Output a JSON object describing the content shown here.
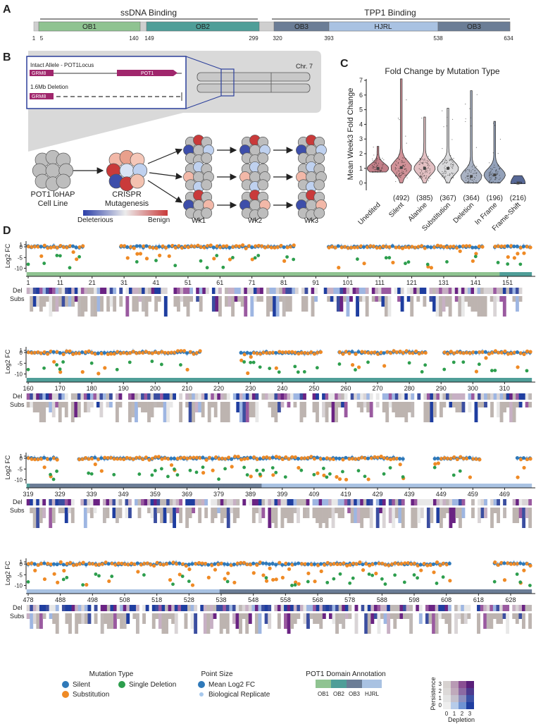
{
  "colors": {
    "ob1": "#8fc391",
    "ob2": "#4f9e98",
    "ob3": "#6b7d96",
    "hjrl": "#a9c2e2",
    "gap": "#cfcfcf",
    "silent": "#2f79b9",
    "deletion": "#2d9e4d",
    "substitution": "#ef8a25",
    "replicate": "#a7c8ec",
    "violin_unedited": "#b86a74",
    "violin_silent": "#c97f86",
    "violin_alanine": "#deb5b8",
    "violin_substitution": "#d3d3d6",
    "violin_deletion": "#9aa4b8",
    "violin_inframe": "#8090ad",
    "violin_frameshift": "#3a4d84"
  },
  "panelA": {
    "label": "A",
    "header_ssdna": "ssDNA Binding",
    "header_tpp1": "TPP1 Binding",
    "domains": [
      {
        "name": "OB1",
        "kind": "ob1"
      },
      {
        "name": "OB2",
        "kind": "ob2"
      },
      {
        "name": "OB3",
        "kind": "ob3"
      },
      {
        "name": "HJRL",
        "kind": "hjrl"
      },
      {
        "name": "OB3",
        "kind": "ob3"
      }
    ],
    "positions": [
      "1",
      "5",
      "140",
      "149",
      "299",
      "320",
      "393",
      "538",
      "634"
    ]
  },
  "panelB": {
    "label": "B",
    "chromosome": "Chr. 7",
    "intact_allele": "Intact Allele - POT1Locus",
    "deletion_allele": "1.6Mb Deletion",
    "gene_grm8": "GRM8",
    "gene_pot1": "POT1",
    "cell_line": "POT1 loHAP",
    "cell_line_2": "Cell Line",
    "crispr": "CRISPR",
    "crispr_2": "Mutagenesis",
    "scale_left": "Deleterious",
    "scale_right": "Benign",
    "weeks": [
      "Wk1",
      "Wk2",
      "Wk3"
    ]
  },
  "panelC": {
    "label": "C",
    "chart_data": {
      "type": "violin",
      "title": "Fold Change by Mutation Type",
      "ylabel": "Mean Week3 Fold Change",
      "ylim": [
        -0.5,
        7
      ],
      "yticks": [
        0,
        1,
        2,
        3,
        4,
        5,
        6,
        7
      ],
      "categories": [
        "Unedited",
        "Silent",
        "Alanine",
        "Substitution",
        "Deletion",
        "In Frame",
        "Frame-Shift"
      ],
      "counts": [
        "",
        "(492)",
        "(385)",
        "(367)",
        "(364)",
        "(196)",
        "(216)"
      ],
      "medians": [
        1.0,
        1.05,
        1.0,
        1.0,
        0.45,
        0.55,
        0.0
      ],
      "max_values": [
        2.5,
        7.1,
        4.5,
        5.1,
        6.3,
        4.2,
        0.5
      ],
      "min_values": [
        0.75,
        0.0,
        0.0,
        0.0,
        0.0,
        0.0,
        -0.05
      ]
    }
  },
  "panelD": {
    "label": "D",
    "ylabel": "Log2 FC",
    "yticks": [
      "1",
      "0",
      "-5",
      "-10"
    ],
    "row_del": "Del",
    "row_subs": "Subs",
    "chart_data": {
      "type": "scatter",
      "ylabel": "Log2 FC",
      "ylim": [
        -10.5,
        2
      ],
      "rows": [
        {
          "start": 1,
          "end": 158,
          "ticks": [
            "1",
            "11",
            "21",
            "31",
            "41",
            "51",
            "61",
            "71",
            "81",
            "91",
            "101",
            "111",
            "121",
            "131",
            "141",
            "151"
          ]
        },
        {
          "start": 160,
          "end": 318,
          "ticks": [
            "160",
            "170",
            "180",
            "190",
            "200",
            "210",
            "220",
            "230",
            "240",
            "250",
            "260",
            "270",
            "280",
            "290",
            "300",
            "310"
          ]
        },
        {
          "start": 319,
          "end": 477,
          "ticks": [
            "319",
            "329",
            "339",
            "349",
            "359",
            "369",
            "379",
            "389",
            "399",
            "409",
            "419",
            "429",
            "439",
            "449",
            "459",
            "469"
          ]
        },
        {
          "start": 478,
          "end": 634,
          "ticks": [
            "478",
            "488",
            "498",
            "508",
            "518",
            "528",
            "538",
            "548",
            "558",
            "568",
            "578",
            "588",
            "598",
            "608",
            "618",
            "628"
          ]
        }
      ]
    },
    "legend": {
      "mutation_type_title": "Mutation Type",
      "silent": "Silent",
      "single_deletion": "Single Deletion",
      "substitution": "Substitution",
      "point_size_title": "Point Size",
      "mean_fc": "Mean Log2 FC",
      "bio_rep": "Biological Replicate",
      "domain_title": "POT1 Domain Annotation",
      "domain_names": [
        "OB1",
        "OB2",
        "OB3",
        "HJRL"
      ],
      "persistence": "Persistence",
      "depletion": "Depletion",
      "scale_values": [
        "0",
        "1",
        "2",
        "3"
      ]
    }
  }
}
